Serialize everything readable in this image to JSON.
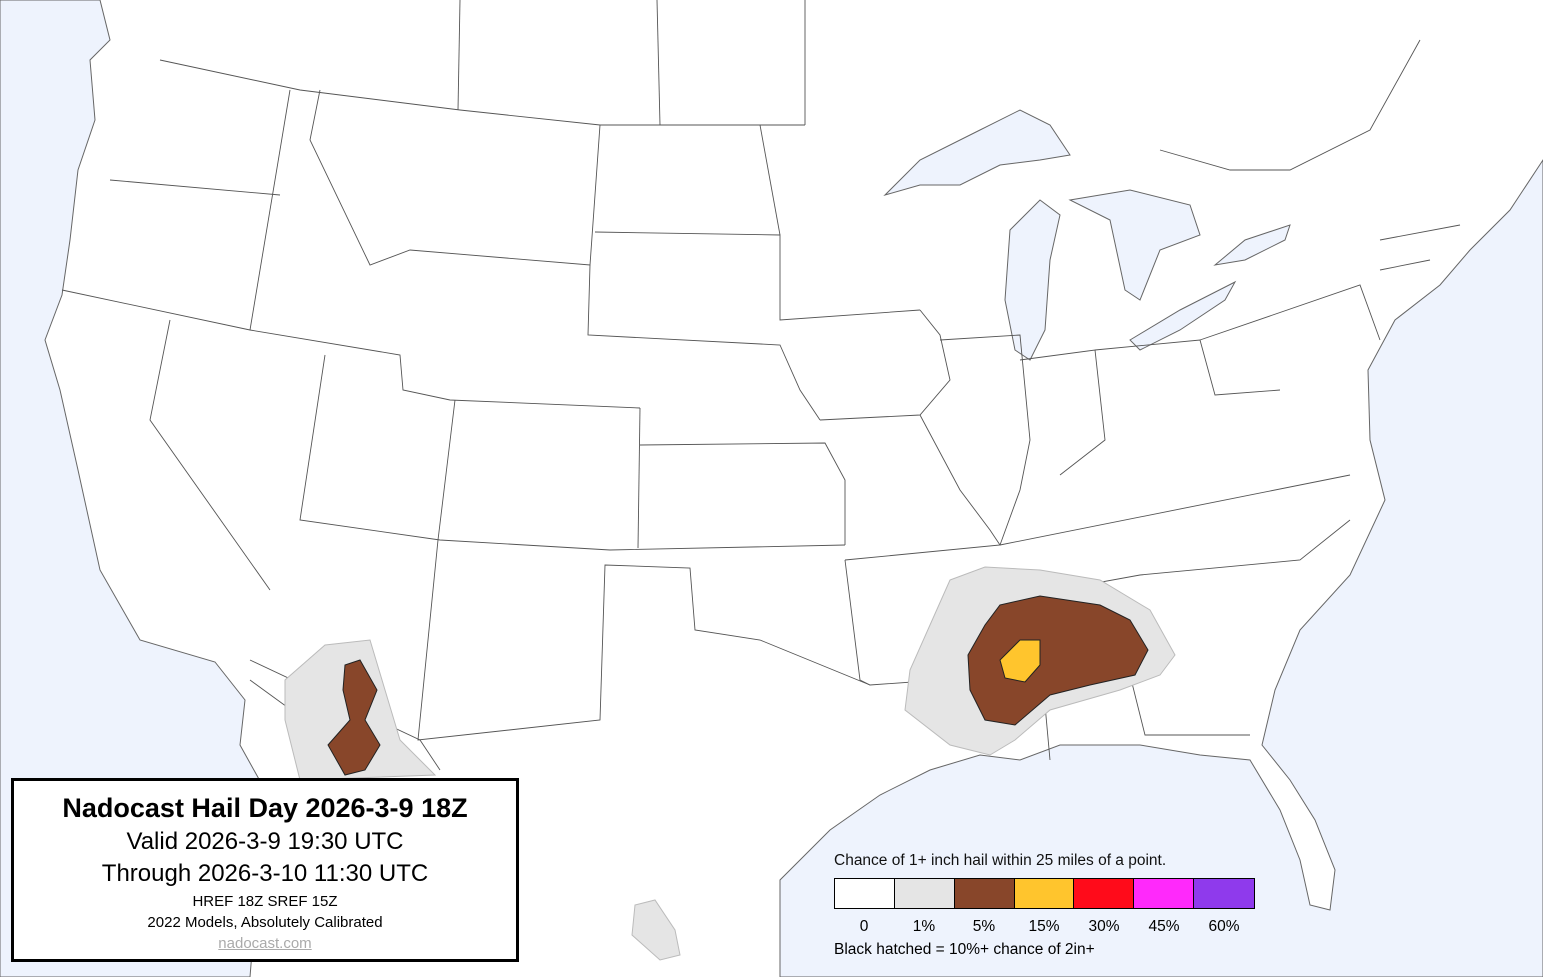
{
  "title_box": {
    "title": "Nadocast Hail Day 2026-3-9 18Z",
    "valid": "Valid 2026-3-9 19:30 UTC",
    "through": "Through 2026-3-10 11:30 UTC",
    "models": "HREF 18Z SREF 15Z",
    "calibration": "2022 Models, Absolutely Calibrated",
    "link": "nadocast.com"
  },
  "legend": {
    "caption": "Chance of 1+ inch hail within 25 miles of a point.",
    "bins": [
      {
        "label": "0",
        "color": "#ffffff"
      },
      {
        "label": "1%",
        "color": "#e5e5e5"
      },
      {
        "label": "5%",
        "color": "#88462a"
      },
      {
        "label": "15%",
        "color": "#ffc52d"
      },
      {
        "label": "30%",
        "color": "#ff0b1a"
      },
      {
        "label": "45%",
        "color": "#ff29fb"
      },
      {
        "label": "60%",
        "color": "#8f3aec"
      }
    ],
    "note": "Black hatched = 10%+ chance of 2in+"
  },
  "colors": {
    "water": "#eef3fd",
    "land": "#ffffff",
    "border": "#555555"
  }
}
